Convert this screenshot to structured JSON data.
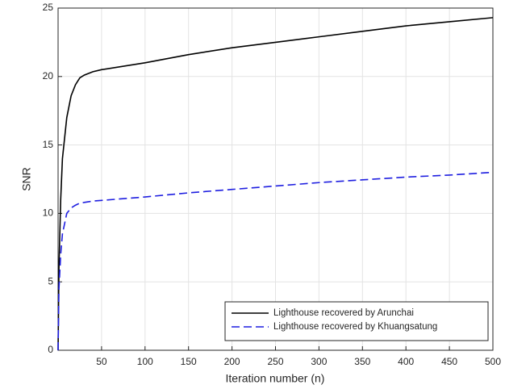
{
  "chart_data": {
    "type": "line",
    "xlabel": "Iteration number (n)",
    "ylabel": "SNR",
    "xlim": [
      0,
      500
    ],
    "ylim": [
      0,
      25
    ],
    "xticks": [
      50,
      100,
      150,
      200,
      250,
      300,
      350,
      400,
      450,
      500
    ],
    "yticks": [
      0,
      5,
      10,
      15,
      20,
      25
    ],
    "grid": true,
    "legend": "lower right",
    "series": [
      {
        "name": "Lighthouse recovered by Arunchai",
        "color": "#000000",
        "dash": "solid",
        "x": [
          0,
          1,
          3,
          5,
          10,
          15,
          20,
          25,
          30,
          40,
          50,
          100,
          150,
          200,
          250,
          300,
          350,
          400,
          450,
          500
        ],
        "values": [
          0,
          6,
          11,
          14,
          17,
          18.6,
          19.4,
          19.9,
          20.1,
          20.35,
          20.5,
          21.0,
          21.6,
          22.1,
          22.5,
          22.9,
          23.3,
          23.7,
          24.0,
          24.3
        ]
      },
      {
        "name": "Lighthouse recovered by Khuangsatung",
        "color": "#1f1fe0",
        "dash": "dashed",
        "x": [
          0,
          1,
          3,
          5,
          10,
          15,
          20,
          25,
          30,
          40,
          50,
          100,
          150,
          200,
          250,
          300,
          350,
          400,
          450,
          500
        ],
        "values": [
          0,
          4.5,
          7,
          8.5,
          10.0,
          10.4,
          10.6,
          10.75,
          10.8,
          10.9,
          10.95,
          11.2,
          11.5,
          11.75,
          12.0,
          12.25,
          12.45,
          12.65,
          12.8,
          13.0
        ]
      }
    ]
  }
}
